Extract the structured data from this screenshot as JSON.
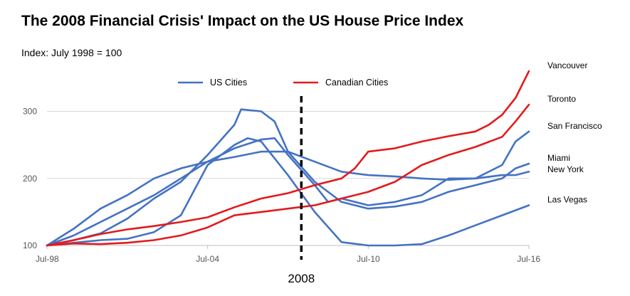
{
  "title": "The 2008 Financial Crisis' Impact on the US House Price Index",
  "subtitle": "Index: July 1998 = 100",
  "colors": {
    "us": "#4472C4",
    "canada": "#E31A1C",
    "gridline": "#D9D9D9",
    "axis": "#BFBFBF"
  },
  "chart_data": {
    "type": "line",
    "x_domain": [
      "Jul-98",
      "Jul-16"
    ],
    "ylim": [
      100,
      360
    ],
    "x_ticks": [
      "Jul-98",
      "Jul-04",
      "Jul-10",
      "Jul-16"
    ],
    "y_ticks": [
      100,
      200,
      300
    ],
    "legend": {
      "placement": "top-center",
      "entries": [
        {
          "name": "US Cities",
          "group": "us"
        },
        {
          "name": "Canadian Cities",
          "group": "canada"
        }
      ]
    },
    "annotation": {
      "label": "2008",
      "x": "2008-01",
      "style": "dashed-vertical-line"
    },
    "series": [
      {
        "name": "Vancouver",
        "group": "canada",
        "points": [
          [
            "1998-07",
            100
          ],
          [
            "1999-07",
            108
          ],
          [
            "2000-07",
            117
          ],
          [
            "2001-07",
            124
          ],
          [
            "2002-07",
            129
          ],
          [
            "2003-07",
            135
          ],
          [
            "2004-07",
            142
          ],
          [
            "2005-07",
            157
          ],
          [
            "2006-07",
            170
          ],
          [
            "2007-07",
            178
          ],
          [
            "2008-07",
            190
          ],
          [
            "2009-07",
            200
          ],
          [
            "2010-01",
            215
          ],
          [
            "2010-07",
            240
          ],
          [
            "2011-07",
            245
          ],
          [
            "2012-07",
            255
          ],
          [
            "2013-07",
            263
          ],
          [
            "2014-07",
            270
          ],
          [
            "2015-01",
            280
          ],
          [
            "2015-07",
            295
          ],
          [
            "2016-01",
            320
          ],
          [
            "2016-07",
            360
          ]
        ]
      },
      {
        "name": "Toronto",
        "group": "canada",
        "points": [
          [
            "1998-07",
            100
          ],
          [
            "1999-07",
            103
          ],
          [
            "2000-07",
            102
          ],
          [
            "2001-07",
            104
          ],
          [
            "2002-07",
            108
          ],
          [
            "2003-07",
            115
          ],
          [
            "2004-07",
            127
          ],
          [
            "2005-07",
            145
          ],
          [
            "2006-07",
            150
          ],
          [
            "2007-07",
            155
          ],
          [
            "2008-07",
            160
          ],
          [
            "2009-07",
            170
          ],
          [
            "2010-07",
            180
          ],
          [
            "2011-07",
            195
          ],
          [
            "2012-07",
            220
          ],
          [
            "2013-07",
            235
          ],
          [
            "2014-07",
            247
          ],
          [
            "2015-07",
            262
          ],
          [
            "2016-01",
            285
          ],
          [
            "2016-07",
            310
          ]
        ]
      },
      {
        "name": "San Francisco",
        "group": "us",
        "points": [
          [
            "1998-07",
            100
          ],
          [
            "1999-07",
            125
          ],
          [
            "2000-07",
            155
          ],
          [
            "2001-07",
            175
          ],
          [
            "2002-07",
            200
          ],
          [
            "2003-07",
            215
          ],
          [
            "2004-07",
            225
          ],
          [
            "2005-07",
            245
          ],
          [
            "2006-07",
            258
          ],
          [
            "2007-01",
            260
          ],
          [
            "2007-07",
            235
          ],
          [
            "2008-07",
            190
          ],
          [
            "2009-01",
            165
          ],
          [
            "2009-07",
            170
          ],
          [
            "2010-07",
            160
          ],
          [
            "2011-07",
            165
          ],
          [
            "2012-07",
            175
          ],
          [
            "2013-07",
            200
          ],
          [
            "2014-07",
            200
          ],
          [
            "2015-07",
            220
          ],
          [
            "2016-01",
            255
          ],
          [
            "2016-07",
            270
          ]
        ]
      },
      {
        "name": "Miami",
        "group": "us",
        "points": [
          [
            "1998-07",
            100
          ],
          [
            "1999-07",
            108
          ],
          [
            "2000-07",
            118
          ],
          [
            "2001-07",
            140
          ],
          [
            "2002-07",
            170
          ],
          [
            "2003-07",
            195
          ],
          [
            "2004-07",
            235
          ],
          [
            "2005-07",
            280
          ],
          [
            "2005-10",
            303
          ],
          [
            "2006-07",
            300
          ],
          [
            "2007-01",
            285
          ],
          [
            "2007-07",
            240
          ],
          [
            "2008-07",
            195
          ],
          [
            "2009-07",
            165
          ],
          [
            "2010-07",
            155
          ],
          [
            "2011-07",
            158
          ],
          [
            "2012-07",
            165
          ],
          [
            "2013-07",
            180
          ],
          [
            "2014-07",
            190
          ],
          [
            "2015-07",
            200
          ],
          [
            "2016-01",
            215
          ],
          [
            "2016-07",
            222
          ]
        ]
      },
      {
        "name": "New York",
        "group": "us",
        "points": [
          [
            "1998-07",
            100
          ],
          [
            "1999-07",
            115
          ],
          [
            "2000-07",
            135
          ],
          [
            "2001-07",
            155
          ],
          [
            "2002-07",
            175
          ],
          [
            "2003-07",
            200
          ],
          [
            "2004-07",
            225
          ],
          [
            "2005-07",
            232
          ],
          [
            "2006-07",
            240
          ],
          [
            "2007-07",
            240
          ],
          [
            "2008-07",
            225
          ],
          [
            "2009-07",
            210
          ],
          [
            "2010-07",
            205
          ],
          [
            "2011-07",
            203
          ],
          [
            "2012-07",
            200
          ],
          [
            "2013-07",
            198
          ],
          [
            "2014-07",
            200
          ],
          [
            "2015-07",
            205
          ],
          [
            "2016-01",
            205
          ],
          [
            "2016-07",
            210
          ]
        ]
      },
      {
        "name": "Las Vegas",
        "group": "us",
        "points": [
          [
            "1998-07",
            100
          ],
          [
            "1999-07",
            104
          ],
          [
            "2000-07",
            108
          ],
          [
            "2001-07",
            110
          ],
          [
            "2002-07",
            120
          ],
          [
            "2003-07",
            145
          ],
          [
            "2004-07",
            220
          ],
          [
            "2005-07",
            250
          ],
          [
            "2006-01",
            260
          ],
          [
            "2006-07",
            255
          ],
          [
            "2007-01",
            230
          ],
          [
            "2007-07",
            205
          ],
          [
            "2008-07",
            150
          ],
          [
            "2009-07",
            105
          ],
          [
            "2010-07",
            100
          ],
          [
            "2011-07",
            100
          ],
          [
            "2012-07",
            102
          ],
          [
            "2013-07",
            115
          ],
          [
            "2014-07",
            130
          ],
          [
            "2015-07",
            145
          ],
          [
            "2016-07",
            160
          ]
        ]
      }
    ]
  }
}
